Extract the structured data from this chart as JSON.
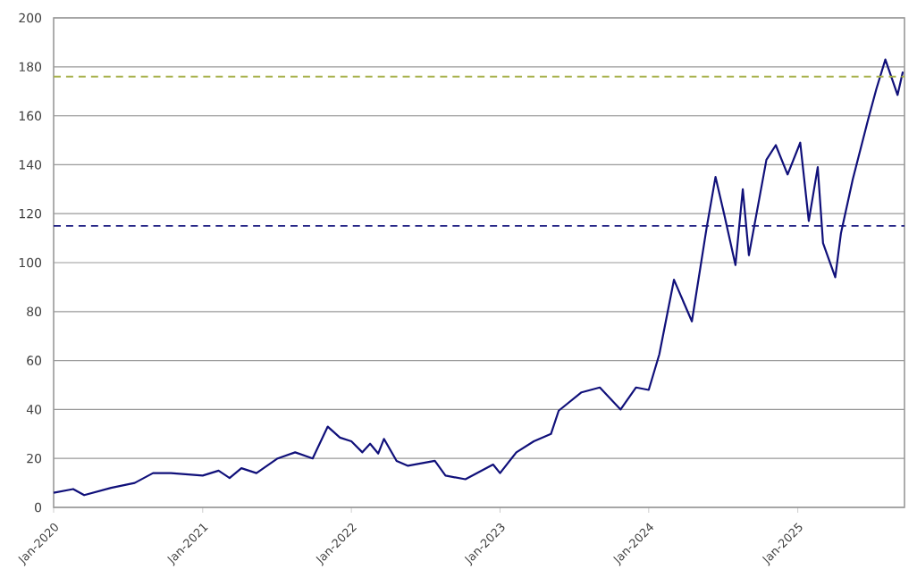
{
  "chart_data": {
    "type": "line",
    "xlim": [
      "2020-01-01",
      "2025-09-20"
    ],
    "ylim": [
      0,
      200
    ],
    "xticks": [
      {
        "value": "2020-01-01",
        "label": "Jan-2020"
      },
      {
        "value": "2021-01-01",
        "label": "Jan-2021"
      },
      {
        "value": "2022-01-01",
        "label": "Jan-2022"
      },
      {
        "value": "2023-01-01",
        "label": "Jan-2023"
      },
      {
        "value": "2024-01-01",
        "label": "Jan-2024"
      },
      {
        "value": "2025-01-01",
        "label": "Jan-2025"
      }
    ],
    "yticks": [
      0,
      20,
      40,
      60,
      80,
      100,
      120,
      140,
      160,
      180,
      200
    ],
    "grid": "y",
    "marker": "none",
    "line_style": "solid",
    "series": [
      {
        "color": "#10107a",
        "x": [
          "2020-01-01",
          "2020-02-18",
          "2020-03-16",
          "2020-05-21",
          "2020-07-18",
          "2020-09-01",
          "2020-10-15",
          "2021-01-01",
          "2021-02-09",
          "2021-03-08",
          "2021-04-06",
          "2021-05-13",
          "2021-07-04",
          "2021-08-16",
          "2021-09-28",
          "2021-11-04",
          "2021-12-04",
          "2022-01-01",
          "2022-01-28",
          "2022-02-16",
          "2022-03-08",
          "2022-03-22",
          "2022-04-22",
          "2022-05-20",
          "2022-07-25",
          "2022-08-20",
          "2022-10-08",
          "2022-12-15",
          "2023-01-01",
          "2023-02-10",
          "2023-03-25",
          "2023-05-06",
          "2023-05-25",
          "2023-07-20",
          "2023-09-03",
          "2023-10-24",
          "2023-12-01",
          "2024-01-01",
          "2024-01-27",
          "2024-03-03",
          "2024-04-16",
          "2024-05-22",
          "2024-06-13",
          "2024-07-04",
          "2024-08-01",
          "2024-08-19",
          "2024-09-03",
          "2024-10-16",
          "2024-11-08",
          "2024-12-07",
          "2025-01-07",
          "2025-01-28",
          "2025-02-19",
          "2025-03-04",
          "2025-04-03",
          "2025-04-17",
          "2025-05-16",
          "2025-06-22",
          "2025-07-13",
          "2025-08-04",
          "2025-09-03",
          "2025-09-16"
        ],
        "values": [
          6,
          7.5,
          5,
          8,
          10,
          14,
          14,
          13,
          15,
          12,
          16,
          14,
          20,
          22.5,
          20,
          33,
          28.5,
          27,
          22.5,
          26,
          22,
          28,
          19,
          17,
          19,
          13,
          11.5,
          17.5,
          14,
          22.5,
          27,
          30,
          39.5,
          47,
          49,
          40,
          49,
          48,
          62.5,
          93,
          76,
          114,
          135,
          120,
          99,
          130,
          103,
          142,
          148,
          136,
          149,
          117,
          139,
          108,
          94,
          112,
          134,
          158,
          171,
          183,
          168.5,
          178
        ]
      }
    ],
    "ref_lines": [
      {
        "axis": "y",
        "value": 176,
        "color": "#a6b04a",
        "line_style": "dashed"
      },
      {
        "axis": "y",
        "value": 115,
        "color": "#1a1a80",
        "line_style": "dashed"
      }
    ]
  }
}
